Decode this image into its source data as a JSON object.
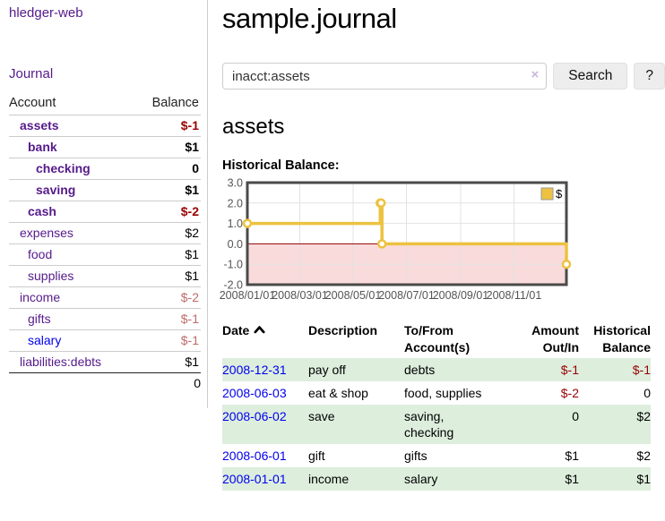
{
  "colors": {
    "link_visited": "#551a8b",
    "link_unvisited": "#0000ee",
    "negative_strong": "#990000",
    "negative_soft": "#bf6a6a",
    "row_green": "#ddeedd",
    "series_gold": "#edc240"
  },
  "sidebar": {
    "brand": "hledger-web",
    "journal_link": "Journal",
    "account_header": "Account",
    "balance_header": "Balance",
    "accounts": [
      {
        "name": "assets",
        "balance": "$-1",
        "level": 1,
        "bold": true,
        "balance_class": "neg-strong"
      },
      {
        "name": "bank",
        "balance": "$1",
        "level": 2,
        "bold": true,
        "balance_class": ""
      },
      {
        "name": "checking",
        "balance": "0",
        "level": 3,
        "bold": true,
        "balance_class": ""
      },
      {
        "name": "saving",
        "balance": "$1",
        "level": 3,
        "bold": true,
        "balance_class": ""
      },
      {
        "name": "cash",
        "balance": "$-2",
        "level": 2,
        "bold": true,
        "balance_class": "neg-strong"
      },
      {
        "name": "expenses",
        "balance": "$2",
        "level": 1,
        "bold": false,
        "balance_class": ""
      },
      {
        "name": "food",
        "balance": "$1",
        "level": 2,
        "bold": false,
        "balance_class": ""
      },
      {
        "name": "supplies",
        "balance": "$1",
        "level": 2,
        "bold": false,
        "balance_class": ""
      },
      {
        "name": "income",
        "balance": "$-2",
        "level": 1,
        "bold": false,
        "balance_class": "neg-soft"
      },
      {
        "name": "gifts",
        "balance": "$-1",
        "level": 2,
        "bold": false,
        "balance_class": "neg-soft"
      },
      {
        "name": "salary",
        "balance": "$-1",
        "level": 2,
        "bold": false,
        "balance_class": "neg-soft",
        "link_style": "unvisited"
      },
      {
        "name": "liabilities:debts",
        "balance": "$1",
        "level": 1,
        "bold": false,
        "balance_class": ""
      }
    ],
    "total": "0"
  },
  "main": {
    "title": "sample.journal",
    "search": {
      "value": "inacct:assets",
      "clear_label": "×",
      "search_button": "Search",
      "help_button": "?"
    },
    "account_heading": "assets",
    "chart_heading": "Historical Balance:"
  },
  "register": {
    "headers": {
      "date": "Date",
      "description": "Description",
      "accounts": "To/From Account(s)",
      "amount": "Amount Out/In",
      "balance": "Historical Balance"
    },
    "sort": "ascending",
    "rows": [
      {
        "date": "2008-12-31",
        "description": "pay off",
        "accounts": "debts",
        "amount": "$-1",
        "balance": "$-1",
        "amount_neg": true,
        "balance_neg": true
      },
      {
        "date": "2008-06-03",
        "description": "eat & shop",
        "accounts": "food, supplies",
        "amount": "$-2",
        "balance": "0",
        "amount_neg": true,
        "balance_neg": false
      },
      {
        "date": "2008-06-02",
        "description": "save",
        "accounts": "saving, checking",
        "amount": "0",
        "balance": "$2",
        "amount_neg": false,
        "balance_neg": false
      },
      {
        "date": "2008-06-01",
        "description": "gift",
        "accounts": "gifts",
        "amount": "$1",
        "balance": "$2",
        "amount_neg": false,
        "balance_neg": false
      },
      {
        "date": "2008-01-01",
        "description": "income",
        "accounts": "salary",
        "amount": "$1",
        "balance": "$1",
        "amount_neg": false,
        "balance_neg": false
      }
    ]
  },
  "chart_data": {
    "type": "line",
    "title": "Historical Balance",
    "step": true,
    "series": [
      {
        "name": "$",
        "color": "#edc240",
        "points": [
          [
            "2008-01-01",
            1
          ],
          [
            "2008-06-01",
            2
          ],
          [
            "2008-06-02",
            2
          ],
          [
            "2008-06-03",
            0
          ],
          [
            "2008-12-31",
            -1
          ]
        ]
      }
    ],
    "xlim": [
      "2008-01-01",
      "2008-12-31"
    ],
    "ylim": [
      -2,
      3
    ],
    "yticks": [
      3,
      2,
      1,
      0,
      -1,
      -2
    ],
    "xticks": [
      "2008/01/01",
      "2008/03/01",
      "2008/05/01",
      "2008/07/01",
      "2008/09/01",
      "2008/11/01"
    ],
    "grid": true,
    "legend_position": "top-right",
    "negative_region_color": "#f9dbdb",
    "zero_line_color": "#8b0000",
    "grid_color": "#e2e2e2",
    "border_color": "#4a4a4a",
    "tick_color": "#545454"
  }
}
